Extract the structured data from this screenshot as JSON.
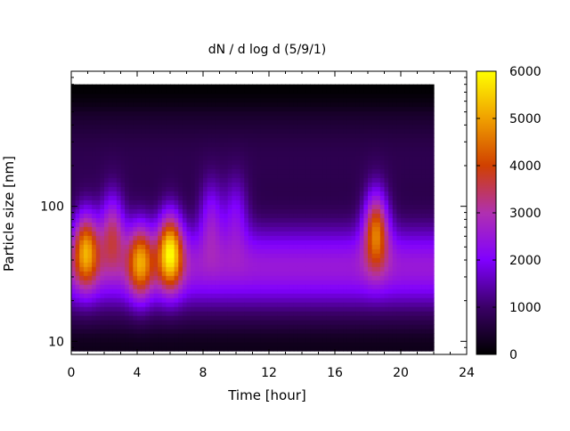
{
  "chart_data": {
    "type": "heatmap",
    "title": "dN / d log d (5/9/1)",
    "xlabel": "Time [hour]",
    "ylabel": "Particle size [nm]",
    "x_ticks": [
      0,
      4,
      8,
      12,
      16,
      20,
      24
    ],
    "y_ticks": [
      10,
      100
    ],
    "xlim": [
      0,
      24
    ],
    "ylim": [
      8,
      1000
    ],
    "y_scale": "log",
    "data_x_range": [
      0,
      22
    ],
    "data_y_range": [
      8.5,
      800
    ],
    "colorbar": {
      "ticks": [
        0,
        1000,
        2000,
        3000,
        4000,
        5000,
        6000
      ],
      "range": [
        0,
        6000
      ],
      "colormap": [
        "#000000",
        "#3a0066",
        "#8000ff",
        "#b030b0",
        "#d04000",
        "#f0a000",
        "#ffff00"
      ]
    },
    "events": [
      {
        "time_hour": 0.9,
        "size_nm": 50,
        "peak_value": 4800
      },
      {
        "time_hour": 2.5,
        "size_nm": 70,
        "peak_value": 3800
      },
      {
        "time_hour": 4.2,
        "size_nm": 40,
        "peak_value": 4500
      },
      {
        "time_hour": 6.0,
        "size_nm": 48,
        "peak_value": 5600
      },
      {
        "time_hour": 8.5,
        "size_nm": 85,
        "peak_value": 3200
      },
      {
        "time_hour": 10.0,
        "size_nm": 90,
        "peak_value": 3000
      },
      {
        "time_hour": 18.5,
        "size_nm": 70,
        "peak_value": 5000
      }
    ]
  }
}
